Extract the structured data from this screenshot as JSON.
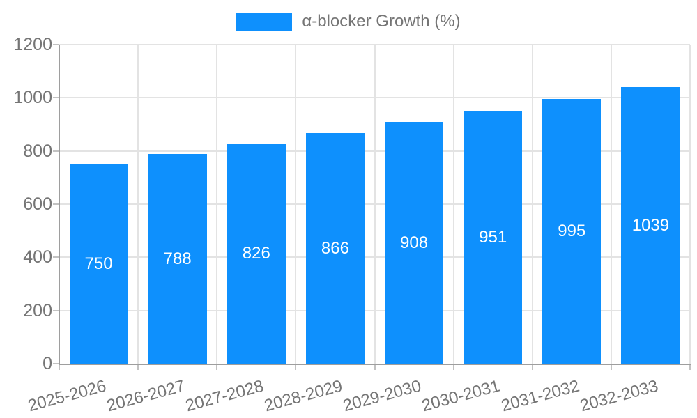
{
  "chart_data": {
    "type": "bar",
    "title": "α-blocker Growth (%)",
    "categories": [
      "2025-2026",
      "2026-2027",
      "2027-2028",
      "2028-2029",
      "2029-2030",
      "2030-2031",
      "2031-2032",
      "2032-2033"
    ],
    "series": [
      {
        "name": "α-blocker Growth (%)",
        "values": [
          750,
          788,
          826,
          866,
          908,
          951,
          995,
          1039
        ]
      }
    ],
    "data_labels": [
      750,
      788,
      826,
      866,
      908,
      951,
      995,
      1039
    ],
    "xlabel": "",
    "ylabel": "",
    "ylim": [
      0,
      1200
    ],
    "yticks": [
      0,
      200,
      400,
      600,
      800,
      1000,
      1200
    ],
    "grid": "both",
    "legend_position": "top-center",
    "colors": {
      "bar": "#0e90fd",
      "data_label": "#ffffff",
      "tick_label": "#757575",
      "grid": "#e3e3e3",
      "axis": "#9e9e9e",
      "tick_mark": "#c2c2c2",
      "background": "#ffffff"
    }
  }
}
